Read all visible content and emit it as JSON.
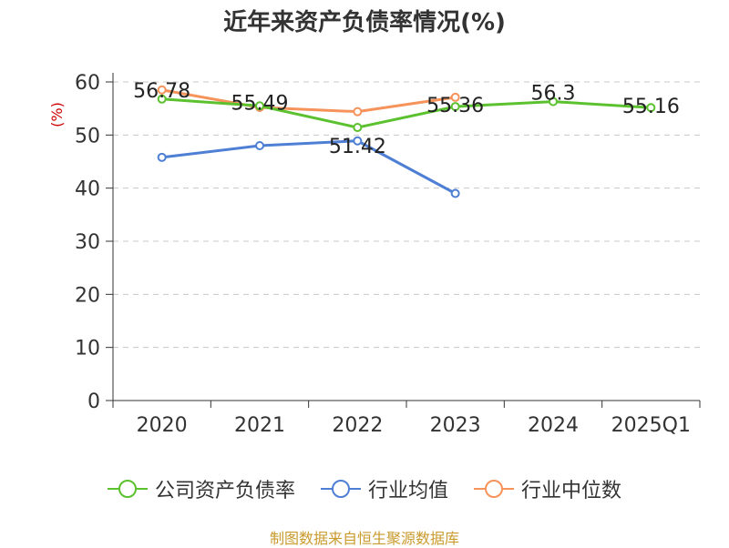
{
  "title": "近年来资产负债率情况(%)",
  "source_note": "制图数据来自恒生聚源数据库",
  "colors": {
    "company": "#5cc12f",
    "industry_avg": "#4e7fd4",
    "industry_median": "#f5935b",
    "axis_unit": "#cc0000",
    "grid": "#c8c8c8",
    "axis": "#333333",
    "source": "#c99a2e"
  },
  "chart_data": {
    "type": "line",
    "title": "近年来资产负债率情况(%)",
    "ylabel": "(%)",
    "xlabel": "",
    "ylim": [
      0,
      60
    ],
    "yticks": [
      0,
      10,
      20,
      30,
      40,
      50,
      60
    ],
    "grid": true,
    "legend_position": "bottom",
    "categories": [
      "2020",
      "2021",
      "2022",
      "2023",
      "2024",
      "2025Q1"
    ],
    "series": [
      {
        "name": "公司资产负债率",
        "color_key": "company",
        "values": [
          56.78,
          55.49,
          51.42,
          55.36,
          56.3,
          55.16
        ],
        "labels": [
          "56.78",
          "55.49",
          "51.42",
          "55.36",
          "56.3",
          "55.16"
        ]
      },
      {
        "name": "行业均值",
        "color_key": "industry_avg",
        "values": [
          45.8,
          48.0,
          48.9,
          39.0,
          null,
          null
        ]
      },
      {
        "name": "行业中位数",
        "color_key": "industry_median",
        "values": [
          58.5,
          55.2,
          54.4,
          57.1,
          null,
          null
        ]
      }
    ]
  }
}
